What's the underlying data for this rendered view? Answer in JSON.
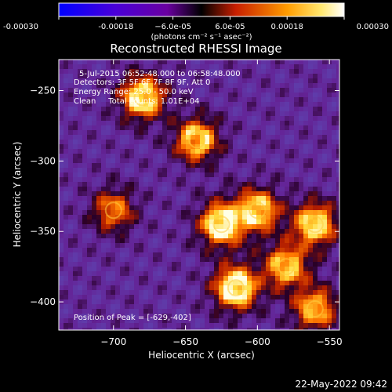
{
  "chart_data": {
    "type": "heatmap",
    "title": "Reconstructed RHESSI Image",
    "xlabel": "Heliocentric X (arcsec)",
    "ylabel": "Heliocentric Y (arcsec)",
    "xlim": [
      -738,
      -543
    ],
    "ylim": [
      -420,
      -228
    ],
    "x_ticks": [
      "−700",
      "−650",
      "−600",
      "−550"
    ],
    "y_ticks": [
      "−250",
      "−300",
      "−350",
      "−400"
    ],
    "colorbar": {
      "range": [
        -0.0003,
        0.0003
      ],
      "tick_labels": [
        "-0.00030",
        "-0.00018",
        "−6.0e-05",
        "6.0e-05",
        "0.00018",
        "0.00030"
      ],
      "unit_label": "(photons cm⁻² s⁻¹ asec⁻²)",
      "colors": [
        "#0000ff",
        "#7a00a8",
        "#000000",
        "#c81e00",
        "#ff9c00",
        "#ffffff"
      ]
    },
    "annotations": [
      "5-Jul-2015 06:52:48.000 to 06:58:48.000",
      "Detectors: 3F 5F 6F 7F 8F 9F, Att 0",
      "Energy Range: 25.0 - 50.0 keV",
      "Clean     Total counts: 1.01E+04"
    ],
    "peak_label": "Position of Peak = [-629,-402]",
    "peak": [
      -629,
      -402
    ],
    "bright_sources": [
      {
        "x": -680,
        "y": -255,
        "level": 0.9
      },
      {
        "x": -642,
        "y": -285,
        "level": 0.8
      },
      {
        "x": -625,
        "y": -345,
        "level": 0.95
      },
      {
        "x": -600,
        "y": -335,
        "level": 0.8
      },
      {
        "x": -560,
        "y": -345,
        "level": 0.85
      },
      {
        "x": -615,
        "y": -390,
        "level": 1.0
      },
      {
        "x": -580,
        "y": -375,
        "level": 0.75
      },
      {
        "x": -700,
        "y": -335,
        "level": 0.55
      },
      {
        "x": -560,
        "y": -405,
        "level": 0.7
      }
    ],
    "grid": false
  },
  "footer": {
    "timestamp": "22-May-2022 09:42"
  }
}
